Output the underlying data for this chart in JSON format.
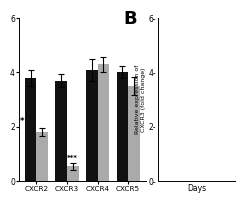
{
  "panel_a": {
    "categories": [
      "CXCR2",
      "CXCR3",
      "CXCR4",
      "CXCR5"
    ],
    "black_values": [
      3.8,
      3.7,
      4.1,
      4.0
    ],
    "gray_values": [
      1.8,
      0.55,
      4.3,
      3.5
    ],
    "black_errors": [
      0.3,
      0.25,
      0.4,
      0.22
    ],
    "gray_errors": [
      0.15,
      0.12,
      0.28,
      0.32
    ],
    "ylim": [
      0,
      6
    ],
    "yticks": [
      0,
      2,
      4,
      6
    ],
    "significance_cxcr2": "*",
    "significance_cxcr3": "***",
    "bar_width": 0.38,
    "black_color": "#111111",
    "gray_color": "#aaaaaa"
  },
  "panel_b": {
    "ylabel": "Relative expression of\nCXCR3 (fold change)",
    "xlabel": "Days",
    "ylim": [
      0,
      6
    ],
    "yticks": [
      0,
      2,
      4,
      6
    ],
    "ytick_labels": [
      "0-",
      "2-",
      "4-",
      "6-"
    ]
  },
  "background_color": "#ffffff",
  "title_b": "B"
}
